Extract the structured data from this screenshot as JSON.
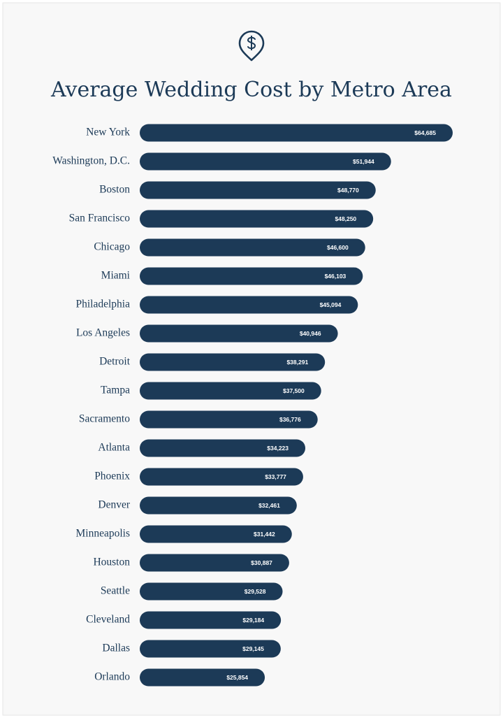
{
  "chart_data": {
    "type": "bar",
    "orientation": "horizontal",
    "title": "Average Wedding Cost by Metro Area",
    "color": "#1c3a57",
    "categories": [
      "New York",
      "Washington, D.C.",
      "Boston",
      "San Francisco",
      "Chicago",
      "Miami",
      "Philadelphia",
      "Los Angeles",
      "Detroit",
      "Tampa",
      "Sacramento",
      "Atlanta",
      "Phoenix",
      "Denver",
      "Minneapolis",
      "Houston",
      "Seattle",
      "Cleveland",
      "Dallas",
      "Orlando"
    ],
    "values": [
      64685,
      51944,
      48770,
      48250,
      46600,
      46103,
      45094,
      40946,
      38291,
      37500,
      36776,
      34223,
      33777,
      32461,
      31442,
      30887,
      29528,
      29184,
      29145,
      25854
    ],
    "value_labels": [
      "$64,685",
      "$51,944",
      "$48,770",
      "$48,250",
      "$46,600",
      "$46,103",
      "$45,094",
      "$40,946",
      "$38,291",
      "$37,500",
      "$36,776",
      "$34,223",
      "$33,777",
      "$32,461",
      "$31,442",
      "$30,887",
      "$29,528",
      "$29,184",
      "$29,145",
      "$25,854"
    ]
  }
}
